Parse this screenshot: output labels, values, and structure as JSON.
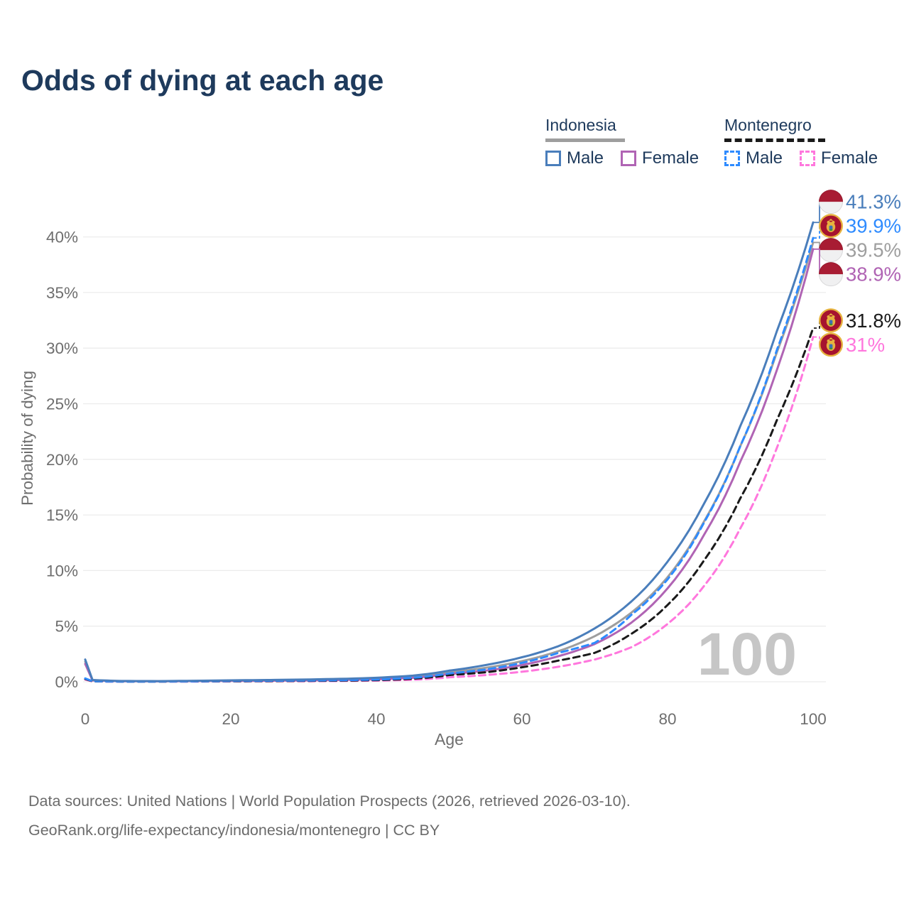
{
  "title": "Odds of dying at each age",
  "legend": {
    "groups": [
      {
        "country": "Indonesia",
        "line_style": "solid-gray",
        "items": [
          {
            "label": "Male",
            "swatch": "im"
          },
          {
            "label": "Female",
            "swatch": "if"
          }
        ]
      },
      {
        "country": "Montenegro",
        "line_style": "dashed-black",
        "items": [
          {
            "label": "Male",
            "swatch": "mm"
          },
          {
            "label": "Female",
            "swatch": "mf"
          }
        ]
      }
    ]
  },
  "watermark": "100",
  "footer": {
    "line1": "Data sources: United Nations | World Population Prospects (2026, retrieved 2026-03-10).",
    "line2": "GeoRank.org/life-expectancy/indonesia/montenegro | CC BY"
  },
  "colors": {
    "im": "#4a7ebb",
    "if": "#b064b4",
    "ib": "#9e9e9e",
    "mm": "#2e8bff",
    "mf": "#ff77dd",
    "mb": "#1a1a1a",
    "title_text": "#1e3a5c",
    "axis_text": "#6e6e6e",
    "gridline": "#ececec",
    "watermark": "#c6c6c6",
    "flag_indonesia_red": "#a81c33",
    "flag_indonesia_white": "#f0f0f1",
    "flag_montenegro_red": "#a6132f",
    "flag_montenegro_gold": "#e6b33f"
  },
  "chart_data": {
    "type": "line",
    "title": "Odds of dying at each age",
    "xlabel": "Age",
    "ylabel": "Probability of dying",
    "xlim": [
      0,
      100
    ],
    "ylim": [
      0,
      43
    ],
    "x_ticks": [
      "0",
      "20",
      "40",
      "60",
      "80",
      "100"
    ],
    "x_tick_values": [
      0,
      20,
      40,
      60,
      80,
      100
    ],
    "y_ticks": [
      "0%",
      "5%",
      "10%",
      "15%",
      "20%",
      "25%",
      "30%",
      "35%",
      "40%"
    ],
    "y_tick_values": [
      0,
      5,
      10,
      15,
      20,
      25,
      30,
      35,
      40
    ],
    "grid": true,
    "legend_position": "top-right",
    "ages": [
      0,
      1,
      5,
      10,
      15,
      20,
      25,
      30,
      35,
      40,
      45,
      50,
      55,
      60,
      65,
      70,
      75,
      80,
      85,
      90,
      95,
      100
    ],
    "series": [
      {
        "key": "ib",
        "name": "Indonesia",
        "country": "Indonesia",
        "sex": "Both",
        "dash": "solid",
        "flag": "indonesia",
        "end_label": "39.5%",
        "end_value": 39.5,
        "values": [
          1.8,
          0.14,
          0.06,
          0.05,
          0.07,
          0.1,
          0.13,
          0.16,
          0.21,
          0.29,
          0.45,
          0.85,
          1.25,
          1.85,
          2.75,
          4.1,
          6.2,
          9.4,
          14.4,
          21.2,
          29.6,
          39.5
        ]
      },
      {
        "key": "if",
        "name": "Indonesia Female",
        "country": "Indonesia",
        "sex": "Female",
        "dash": "solid",
        "flag": "indonesia",
        "end_label": "38.9%",
        "end_value": 38.9,
        "values": [
          1.6,
          0.12,
          0.05,
          0.04,
          0.06,
          0.08,
          0.09,
          0.12,
          0.16,
          0.22,
          0.35,
          0.7,
          1.0,
          1.5,
          2.3,
          3.4,
          5.3,
          8.4,
          13.2,
          19.8,
          28.0,
          38.9
        ]
      },
      {
        "key": "mf",
        "name": "Montenegro Female",
        "country": "Montenegro",
        "sex": "Female",
        "dash": "dashed",
        "flag": "montenegro",
        "end_label": "31%",
        "end_value": 31.0,
        "values": [
          0.2,
          0.03,
          0.015,
          0.015,
          0.02,
          0.03,
          0.04,
          0.05,
          0.07,
          0.1,
          0.18,
          0.4,
          0.6,
          0.9,
          1.35,
          2.0,
          3.1,
          5.2,
          8.6,
          13.8,
          21.0,
          31.0
        ]
      },
      {
        "key": "mb",
        "name": "Montenegro",
        "country": "Montenegro",
        "sex": "Both",
        "dash": "dashed",
        "flag": "montenegro",
        "end_label": "31.8%",
        "end_value": 31.8,
        "values": [
          0.25,
          0.04,
          0.02,
          0.02,
          0.03,
          0.05,
          0.06,
          0.08,
          0.1,
          0.15,
          0.27,
          0.6,
          0.85,
          1.3,
          1.9,
          2.6,
          4.3,
          6.9,
          10.9,
          16.5,
          23.5,
          31.8
        ]
      },
      {
        "key": "mm",
        "name": "Montenegro Male",
        "country": "Montenegro",
        "sex": "Male",
        "dash": "dashed",
        "flag": "montenegro",
        "end_label": "39.9%",
        "end_value": 39.9,
        "values": [
          0.3,
          0.05,
          0.02,
          0.02,
          0.04,
          0.07,
          0.09,
          0.11,
          0.14,
          0.2,
          0.35,
          0.75,
          1.1,
          1.7,
          2.6,
          3.5,
          6.0,
          9.2,
          14.3,
          21.2,
          29.8,
          39.9
        ]
      },
      {
        "key": "im",
        "name": "Indonesia Male",
        "country": "Indonesia",
        "sex": "Male",
        "dash": "solid",
        "flag": "indonesia",
        "end_label": "41.3%",
        "end_value": 41.3,
        "values": [
          2.0,
          0.16,
          0.07,
          0.06,
          0.09,
          0.13,
          0.16,
          0.2,
          0.26,
          0.36,
          0.55,
          1.0,
          1.5,
          2.2,
          3.2,
          4.8,
          7.2,
          10.8,
          16.0,
          23.0,
          31.5,
          41.3
        ]
      }
    ]
  }
}
